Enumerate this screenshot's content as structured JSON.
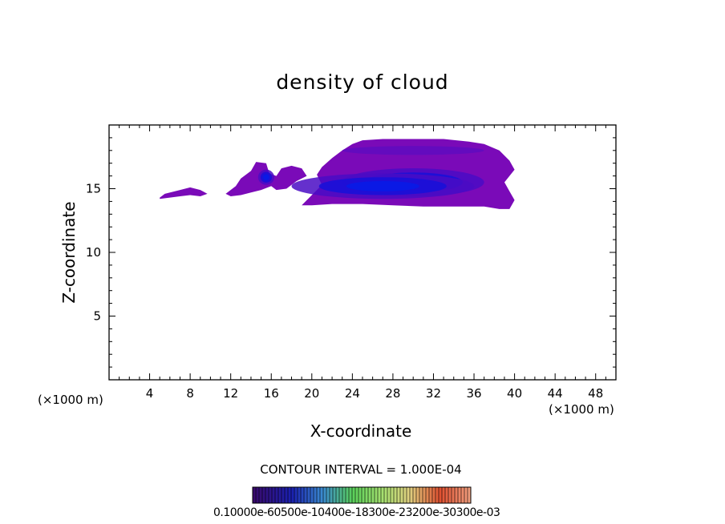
{
  "chart_data": {
    "type": "contour",
    "title": "density of cloud",
    "xlabel": "X-coordinate",
    "ylabel": "Z-coordinate",
    "x_unit_label": "(×1000 m)",
    "xlim": [
      0,
      50
    ],
    "ylim": [
      0,
      20
    ],
    "x_ticks": [
      4,
      8,
      12,
      16,
      20,
      24,
      28,
      32,
      36,
      40,
      44,
      48
    ],
    "y_ticks": [
      5,
      10,
      15
    ],
    "contour_interval_text": "CONTOUR INTERVAL = 1.000E-04",
    "colorbar_labels_text": "0.10000e-60500e-10400e-18300e-23200e-30300e-03",
    "colorbar_min": 0.0001,
    "colorbar_max": 0.0003,
    "cloud_regions": [
      {
        "name": "small-patch",
        "outline": [
          [
            5,
            14.3
          ],
          [
            5.5,
            14.6
          ],
          [
            7,
            14.9
          ],
          [
            8,
            15.1
          ],
          [
            9,
            14.9
          ],
          [
            9.7,
            14.6
          ],
          [
            9,
            14.4
          ],
          [
            8,
            14.5
          ],
          [
            7,
            14.4
          ],
          [
            6,
            14.3
          ],
          [
            5,
            14.2
          ]
        ]
      },
      {
        "name": "mid-patch",
        "outline": [
          [
            11.5,
            14.6
          ],
          [
            12.5,
            15.2
          ],
          [
            13,
            15.8
          ],
          [
            14,
            16.4
          ],
          [
            14.5,
            17.1
          ],
          [
            15.5,
            17
          ],
          [
            15.8,
            16.2
          ],
          [
            16.5,
            16
          ],
          [
            17,
            16.6
          ],
          [
            18,
            16.8
          ],
          [
            19,
            16.6
          ],
          [
            19.5,
            16
          ],
          [
            18.5,
            15.6
          ],
          [
            17.5,
            15
          ],
          [
            16.5,
            14.9
          ],
          [
            16,
            15.2
          ],
          [
            15,
            14.9
          ],
          [
            14,
            14.7
          ],
          [
            13,
            14.5
          ],
          [
            12,
            14.4
          ],
          [
            11.5,
            14.6
          ]
        ]
      },
      {
        "name": "main-cloud",
        "outline": [
          [
            19,
            13.7
          ],
          [
            20,
            14.5
          ],
          [
            21,
            15.3
          ],
          [
            20.5,
            16.1
          ],
          [
            21,
            16.7
          ],
          [
            22,
            17.4
          ],
          [
            23,
            18.0
          ],
          [
            24,
            18.5
          ],
          [
            25,
            18.8
          ],
          [
            27,
            18.9
          ],
          [
            29,
            18.9
          ],
          [
            31,
            18.9
          ],
          [
            33,
            18.9
          ],
          [
            35.5,
            18.7
          ],
          [
            37,
            18.5
          ],
          [
            38.5,
            18.0
          ],
          [
            39.5,
            17.2
          ],
          [
            40,
            16.5
          ],
          [
            39.5,
            16
          ],
          [
            39,
            15.5
          ],
          [
            39.5,
            14.8
          ],
          [
            40,
            14.1
          ],
          [
            39.5,
            13.4
          ],
          [
            38.5,
            13.4
          ],
          [
            37,
            13.6
          ],
          [
            34,
            13.6
          ],
          [
            31,
            13.6
          ],
          [
            28,
            13.7
          ],
          [
            25,
            13.8
          ],
          [
            22,
            13.8
          ],
          [
            20,
            13.7
          ],
          [
            19,
            13.7
          ]
        ]
      }
    ],
    "cloud_cores": [
      {
        "cx": 30,
        "cy": 15.5,
        "rx": 7,
        "ry": 1.1,
        "level": 0.0003
      },
      {
        "cx": 27,
        "cy": 15.2,
        "rx": 9,
        "ry": 1.0,
        "level": 0.0002
      },
      {
        "cx": 15.5,
        "cy": 15.9,
        "rx": 0.8,
        "ry": 0.6,
        "level": 0.0002
      }
    ],
    "colors": {
      "outer": "#7a0ab8",
      "mid": "#4a0cc4",
      "inner": "#1a10d8",
      "core": "#0a1ae6"
    }
  }
}
